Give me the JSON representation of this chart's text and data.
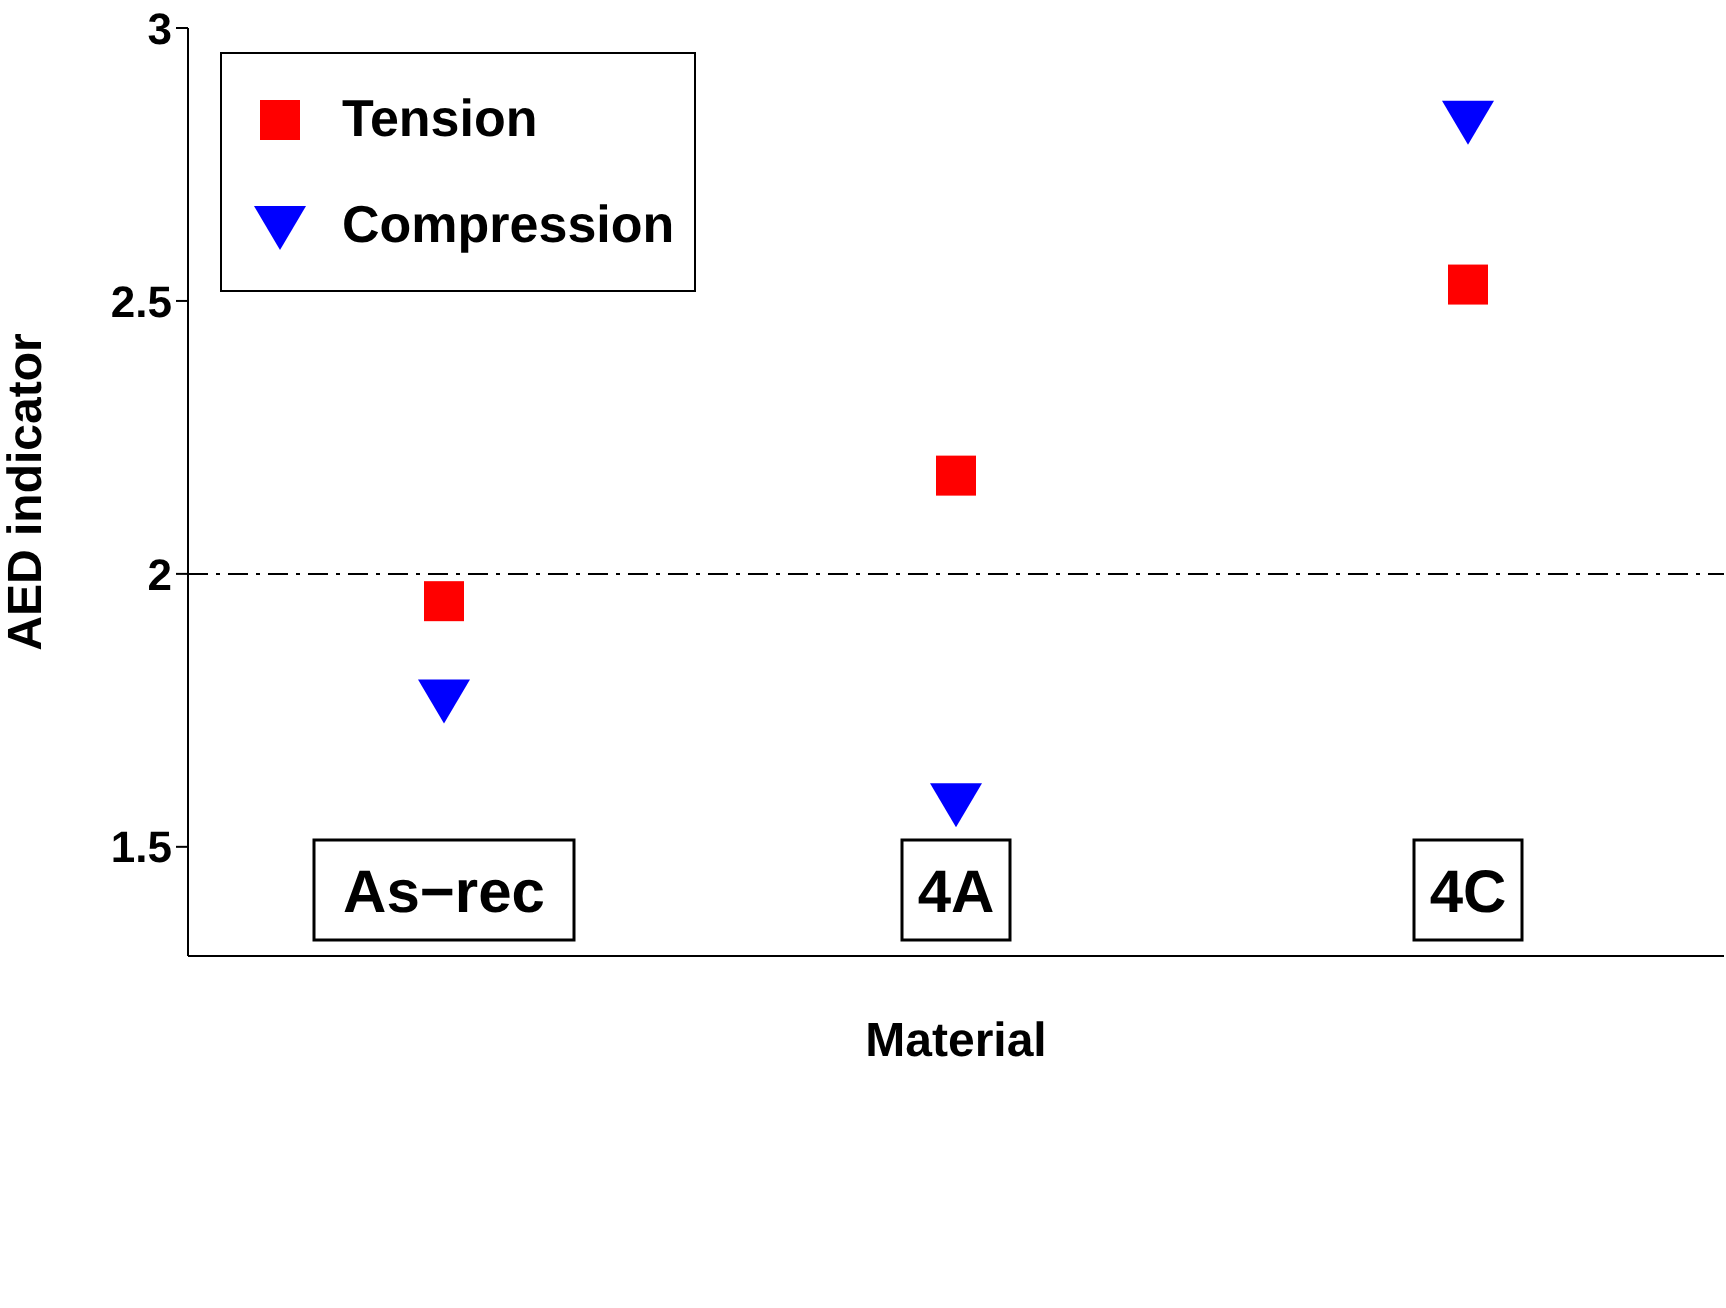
{
  "chart_data": {
    "type": "scatter",
    "xlabel": "Material",
    "ylabel": "AED indicator",
    "categories": [
      "As−rec",
      "4A",
      "4C"
    ],
    "series": [
      {
        "name": "Tension",
        "color": "#ff0000",
        "marker": "square",
        "values": [
          1.95,
          2.18,
          2.53
        ]
      },
      {
        "name": "Compression",
        "color": "#0000ff",
        "marker": "triangle",
        "values": [
          1.77,
          1.58,
          2.83
        ]
      }
    ],
    "ylim": [
      1.3,
      3
    ],
    "yticks": [
      1.5,
      {
        "value": 2,
        "label": "2"
      },
      2.5,
      {
        "value": 3,
        "label": "3"
      }
    ],
    "ref_lines": [
      {
        "axis": "y",
        "value": 2,
        "color": "#000000",
        "line_style": "dashed"
      }
    ],
    "legend": "top left",
    "grid": false
  }
}
